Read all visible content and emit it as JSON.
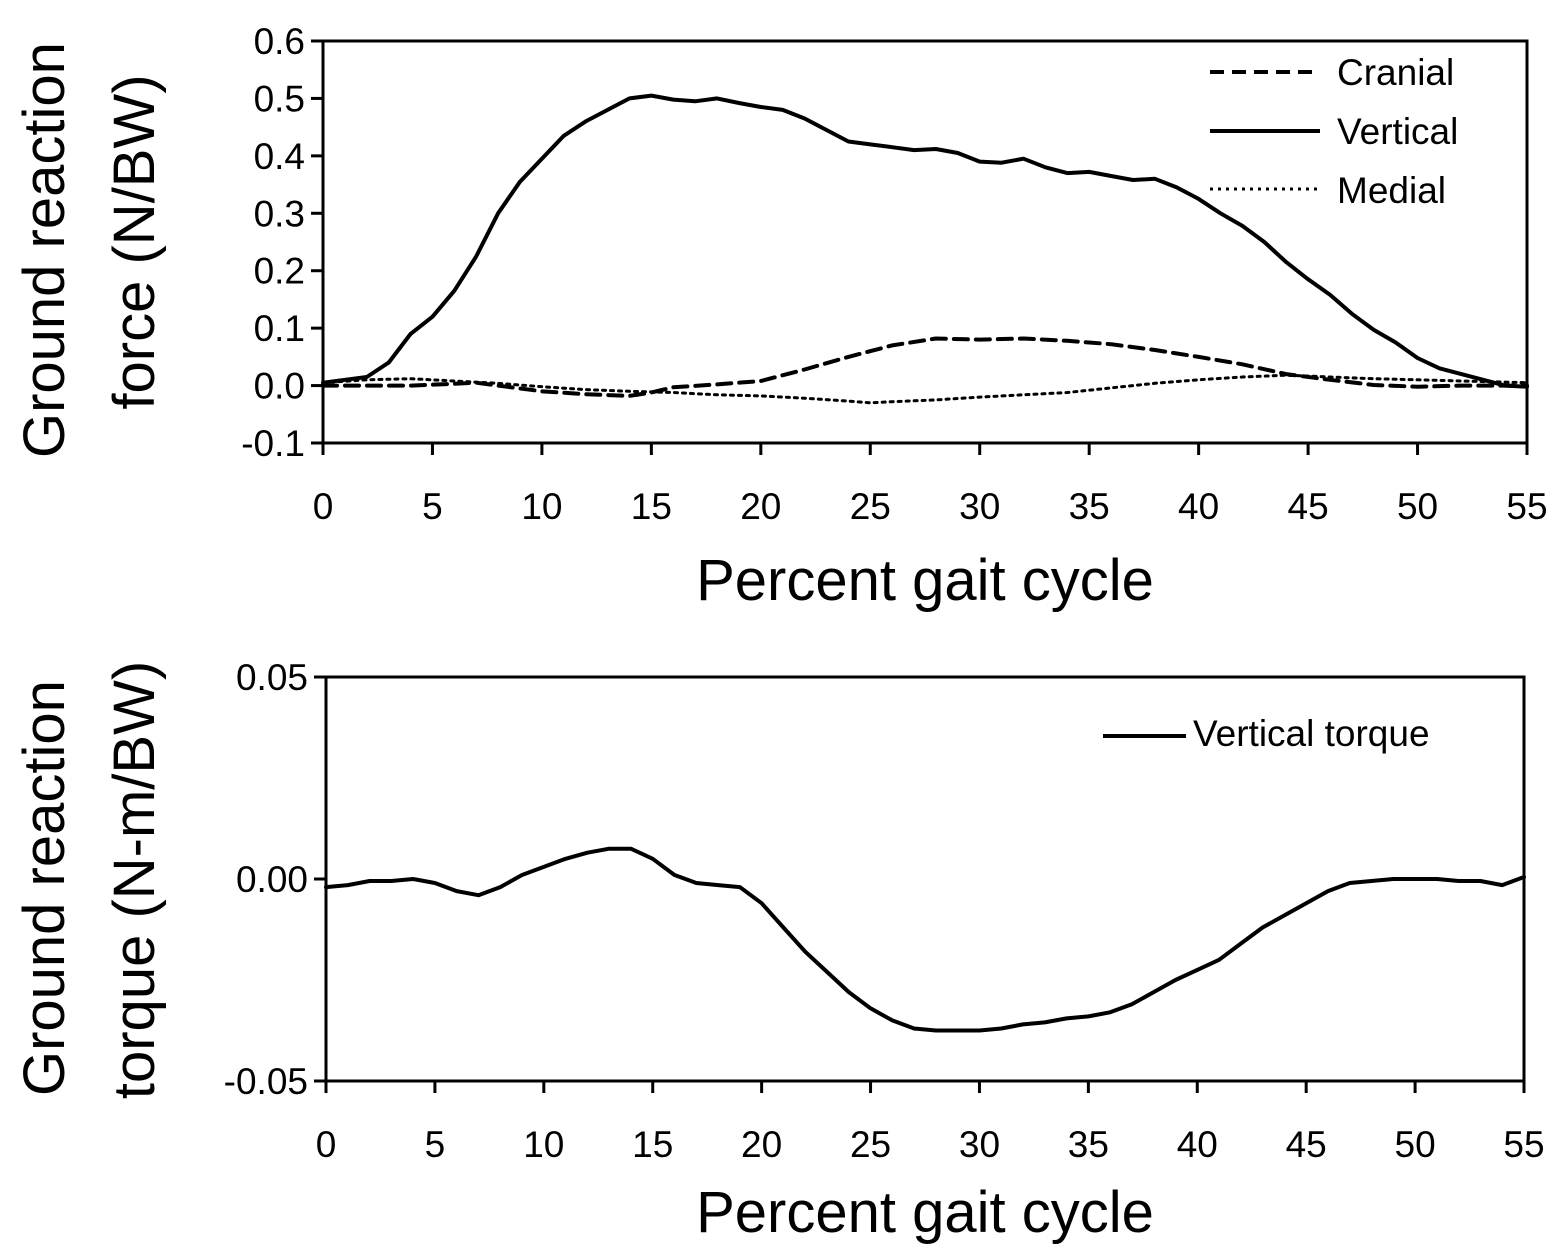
{
  "chart_data": [
    {
      "type": "line",
      "title": "",
      "xlabel": "Percent gait cycle",
      "ylabel_lines": [
        "Ground reaction",
        "force (N/BW)"
      ],
      "xlim": [
        0,
        55
      ],
      "ylim": [
        -0.1,
        0.6
      ],
      "x_ticks": [
        0,
        5,
        10,
        15,
        20,
        25,
        30,
        35,
        40,
        45,
        50,
        55
      ],
      "x_tick_labels": [
        "0",
        "5",
        "10",
        "15",
        "20",
        "25",
        "30",
        "35",
        "40",
        "45",
        "50",
        "55"
      ],
      "y_ticks": [
        -0.1,
        0.0,
        0.1,
        0.2,
        0.3,
        0.4,
        0.5,
        0.6
      ],
      "y_tick_labels": [
        "-0.1",
        "0.0",
        "0.1",
        "0.2",
        "0.3",
        "0.4",
        "0.5",
        "0.6"
      ],
      "grid": false,
      "legend_position": "top-right",
      "series": [
        {
          "name": "Cranial",
          "style": "dashed",
          "x": [
            0,
            2,
            4,
            6,
            7,
            8,
            10,
            12,
            14,
            15,
            16,
            18,
            20,
            22,
            24,
            26,
            28,
            30,
            32,
            34,
            36,
            38,
            40,
            42,
            44,
            46,
            48,
            50,
            52,
            55
          ],
          "y": [
            0.0,
            0.0,
            0.0,
            0.003,
            0.005,
            0.0,
            -0.01,
            -0.015,
            -0.018,
            -0.012,
            -0.003,
            0.002,
            0.008,
            0.028,
            0.05,
            0.07,
            0.082,
            0.08,
            0.082,
            0.078,
            0.072,
            0.062,
            0.05,
            0.037,
            0.02,
            0.01,
            0.001,
            -0.002,
            0.0,
            0.0
          ]
        },
        {
          "name": "Vertical",
          "style": "solid",
          "x": [
            0,
            1,
            2,
            3,
            4,
            5,
            6,
            7,
            8,
            9,
            10,
            11,
            12,
            13,
            14,
            15,
            16,
            17,
            18,
            19,
            20,
            21,
            22,
            23,
            24,
            25,
            26,
            27,
            28,
            29,
            30,
            31,
            32,
            33,
            34,
            35,
            36,
            37,
            38,
            39,
            40,
            41,
            42,
            43,
            44,
            45,
            46,
            47,
            48,
            49,
            50,
            51,
            52,
            53,
            54,
            55
          ],
          "y": [
            0.005,
            0.01,
            0.015,
            0.04,
            0.09,
            0.12,
            0.165,
            0.225,
            0.3,
            0.355,
            0.395,
            0.435,
            0.46,
            0.48,
            0.5,
            0.505,
            0.498,
            0.495,
            0.5,
            0.492,
            0.485,
            0.48,
            0.465,
            0.445,
            0.425,
            0.42,
            0.415,
            0.41,
            0.412,
            0.405,
            0.39,
            0.388,
            0.395,
            0.38,
            0.37,
            0.372,
            0.365,
            0.358,
            0.36,
            0.345,
            0.325,
            0.3,
            0.278,
            0.25,
            0.215,
            0.185,
            0.158,
            0.125,
            0.097,
            0.075,
            0.048,
            0.03,
            0.02,
            0.01,
            0.0,
            -0.002
          ]
        },
        {
          "name": "Medial",
          "style": "dotted",
          "x": [
            0,
            2,
            4,
            6,
            8,
            10,
            12,
            14,
            16,
            18,
            20,
            22,
            24,
            25,
            26,
            28,
            30,
            32,
            34,
            36,
            38,
            40,
            42,
            44,
            46,
            48,
            50,
            52,
            55
          ],
          "y": [
            0.005,
            0.01,
            0.012,
            0.008,
            0.004,
            -0.002,
            -0.007,
            -0.01,
            -0.012,
            -0.016,
            -0.018,
            -0.022,
            -0.027,
            -0.03,
            -0.028,
            -0.025,
            -0.02,
            -0.016,
            -0.012,
            -0.004,
            0.004,
            0.01,
            0.015,
            0.018,
            0.015,
            0.012,
            0.01,
            0.008,
            0.005
          ]
        }
      ]
    },
    {
      "type": "line",
      "title": "",
      "xlabel": "Percent gait cycle",
      "ylabel_lines": [
        "Ground reaction",
        "torque (N-m/BW)"
      ],
      "xlim": [
        0,
        55
      ],
      "ylim": [
        -0.05,
        0.05
      ],
      "x_ticks": [
        0,
        5,
        10,
        15,
        20,
        25,
        30,
        35,
        40,
        45,
        50,
        55
      ],
      "x_tick_labels": [
        "0",
        "5",
        "10",
        "15",
        "20",
        "25",
        "30",
        "35",
        "40",
        "45",
        "50",
        "55"
      ],
      "y_ticks": [
        -0.05,
        0.0,
        0.05
      ],
      "y_tick_labels": [
        "-0.05",
        "0.00",
        "0.05"
      ],
      "grid": false,
      "legend_position": "top-right",
      "series": [
        {
          "name": "Vertical torque",
          "style": "solid",
          "x": [
            0,
            1,
            2,
            3,
            4,
            5,
            6,
            7,
            8,
            9,
            10,
            11,
            12,
            13,
            14,
            15,
            16,
            17,
            18,
            19,
            20,
            21,
            22,
            23,
            24,
            25,
            26,
            27,
            28,
            29,
            30,
            31,
            32,
            33,
            34,
            35,
            36,
            37,
            38,
            39,
            40,
            41,
            42,
            43,
            44,
            45,
            46,
            47,
            48,
            49,
            50,
            51,
            52,
            53,
            54,
            55
          ],
          "y": [
            -0.002,
            -0.0015,
            -0.0005,
            -0.0005,
            0.0,
            -0.001,
            -0.003,
            -0.004,
            -0.002,
            0.001,
            0.003,
            0.005,
            0.0065,
            0.0075,
            0.0075,
            0.005,
            0.001,
            -0.001,
            -0.0015,
            -0.002,
            -0.006,
            -0.012,
            -0.018,
            -0.023,
            -0.028,
            -0.032,
            -0.035,
            -0.037,
            -0.0375,
            -0.0375,
            -0.0375,
            -0.037,
            -0.036,
            -0.0355,
            -0.0345,
            -0.034,
            -0.033,
            -0.031,
            -0.028,
            -0.025,
            -0.0225,
            -0.02,
            -0.016,
            -0.012,
            -0.009,
            -0.006,
            -0.003,
            -0.001,
            -0.0005,
            0.0,
            0.0,
            0.0,
            -0.0005,
            -0.0005,
            -0.0015,
            0.0005
          ]
        }
      ]
    }
  ]
}
